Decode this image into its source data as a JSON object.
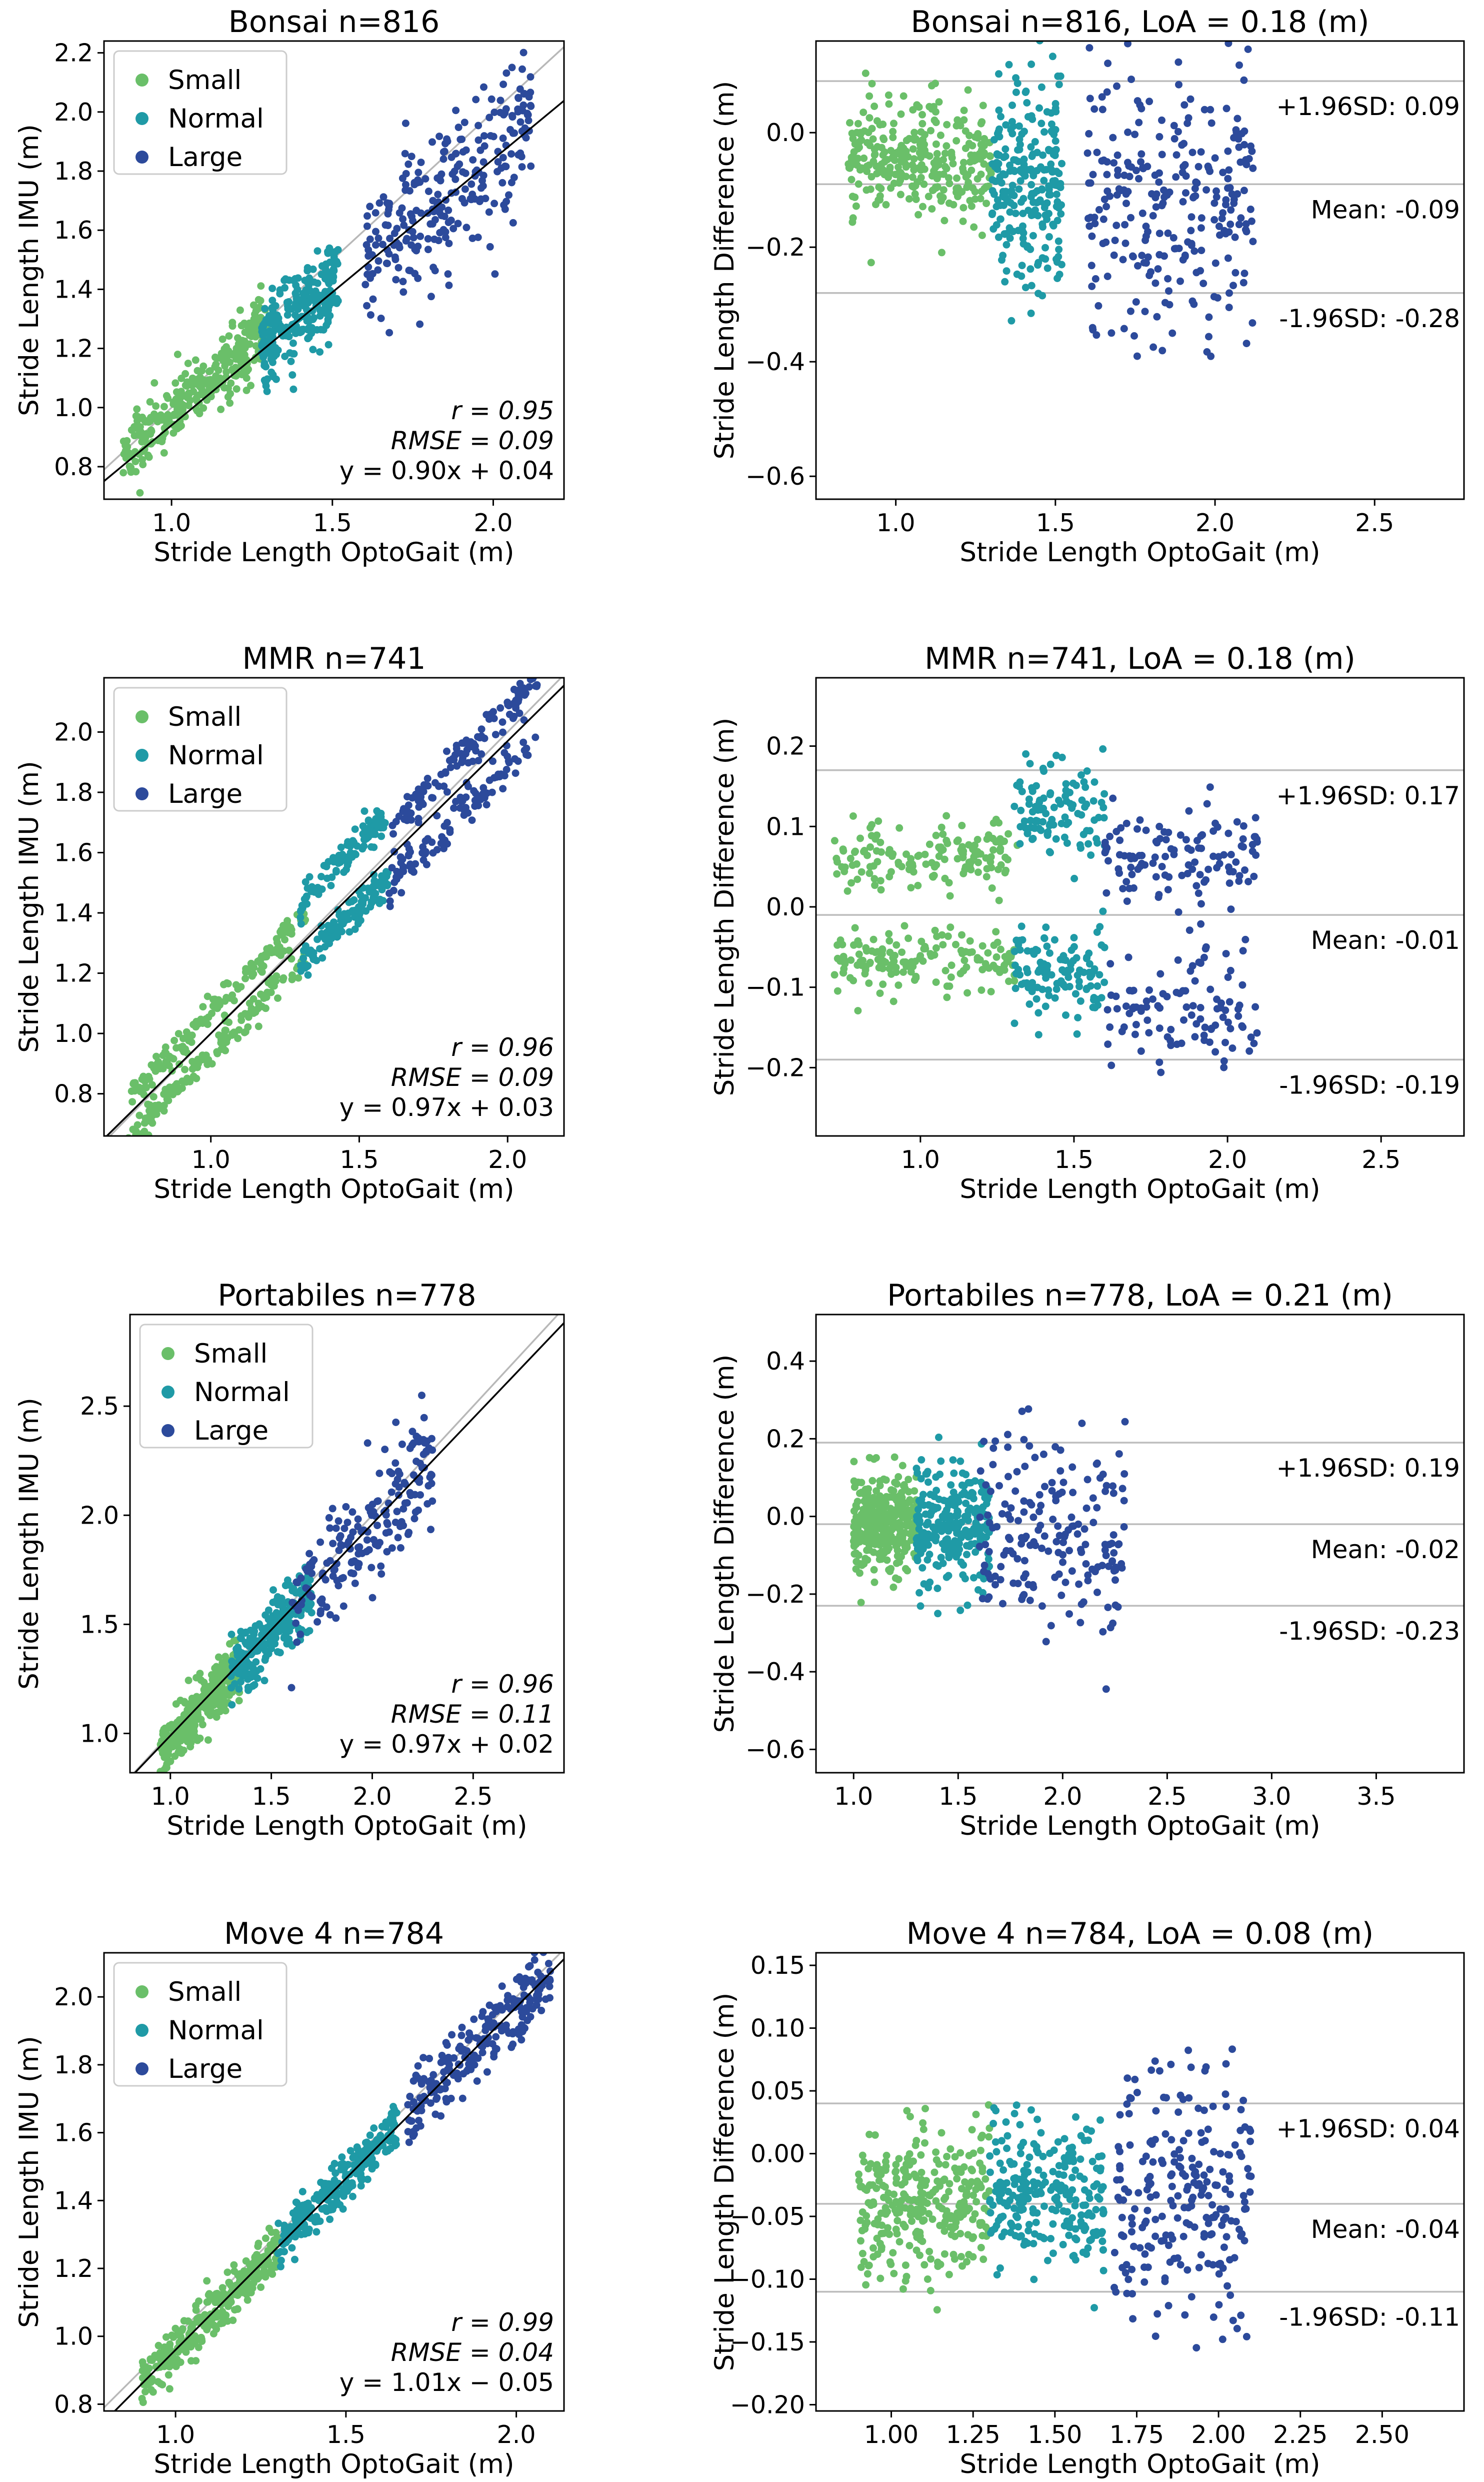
{
  "colors": {
    "small": "#6abf69",
    "normal": "#1f9aa6",
    "large": "#2c4a9b",
    "reference": "#b8b8b8",
    "fit": "#000000",
    "loa_line": "#bdbdbd"
  },
  "legend": [
    "Small",
    "Normal",
    "Large"
  ],
  "chart_data": [
    {
      "type": "scatter",
      "panel": "Bonsai-correlation",
      "title": "Bonsai  n=816",
      "xlabel": "Stride Length OptoGait (m)",
      "ylabel": "Stride Length IMU (m)",
      "xlim": [
        0.79,
        2.22
      ],
      "ylim": [
        0.69,
        2.24
      ],
      "xticks": [
        1.0,
        1.5,
        2.0
      ],
      "xticklabels": [
        "1.0",
        "1.5",
        "2.0"
      ],
      "yticks": [
        0.8,
        1.0,
        1.2,
        1.4,
        1.6,
        1.8,
        2.0,
        2.2
      ],
      "yticklabels": [
        "0.8",
        "1.0",
        "1.2",
        "1.4",
        "1.6",
        "1.8",
        "2.0",
        "2.2"
      ],
      "fit": {
        "slope": 0.9,
        "intercept": 0.04
      },
      "stats": [
        "r = 0.95",
        "RMSE = 0.09",
        "y = 0.90x + 0.04"
      ],
      "series": [
        {
          "name": "Small",
          "x_range": [
            0.85,
            1.3
          ],
          "n": 300,
          "bias": -0.02,
          "sd": 0.06
        },
        {
          "name": "Normal",
          "x_range": [
            1.28,
            1.52
          ],
          "n": 250,
          "bias": -0.08,
          "sd": 0.08
        },
        {
          "name": "Large",
          "x_range": [
            1.6,
            2.12
          ],
          "n": 266,
          "bias": -0.13,
          "sd": 0.13
        }
      ],
      "grid": false,
      "legend_position": "upper-left"
    },
    {
      "type": "scatter",
      "panel": "Bonsai-bland-altman",
      "title": "Bonsai  n=816,   LoA = 0.18 (m)",
      "xlabel": "Stride Length OptoGait (m)",
      "ylabel": "Stride Length Difference (m)",
      "xlim": [
        0.75,
        2.78
      ],
      "ylim": [
        -0.64,
        0.16
      ],
      "xticks": [
        1.0,
        1.5,
        2.0,
        2.5
      ],
      "xticklabels": [
        "1.0",
        "1.5",
        "2.0",
        "2.5"
      ],
      "yticks": [
        -0.6,
        -0.4,
        -0.2,
        0.0
      ],
      "yticklabels": [
        "−0.6",
        "−0.4",
        "−0.2",
        "0.0"
      ],
      "lines": [
        {
          "y": 0.09,
          "label": "+1.96SD: 0.09"
        },
        {
          "y": -0.09,
          "label": "Mean: -0.09"
        },
        {
          "y": -0.28,
          "label": "-1.96SD: -0.28"
        }
      ],
      "series": [
        {
          "name": "Small",
          "x_range": [
            0.85,
            1.3
          ],
          "n": 300,
          "bias": -0.05,
          "sd": 0.05
        },
        {
          "name": "Normal",
          "x_range": [
            1.3,
            1.52
          ],
          "n": 250,
          "bias": -0.09,
          "sd": 0.09
        },
        {
          "name": "Large",
          "x_range": [
            1.6,
            2.12
          ],
          "n": 266,
          "bias": -0.13,
          "sd": 0.13
        }
      ],
      "grid": false
    },
    {
      "type": "scatter",
      "panel": "MMR-correlation",
      "title": "MMR  n=741",
      "xlabel": "Stride Length OptoGait (m)",
      "ylabel": "Stride Length IMU (m)",
      "xlim": [
        0.64,
        2.19
      ],
      "ylim": [
        0.66,
        2.18
      ],
      "xticks": [
        1.0,
        1.5,
        2.0
      ],
      "xticklabels": [
        "1.0",
        "1.5",
        "2.0"
      ],
      "yticks": [
        0.8,
        1.0,
        1.2,
        1.4,
        1.6,
        1.8,
        2.0
      ],
      "yticklabels": [
        "0.8",
        "1.0",
        "1.2",
        "1.4",
        "1.6",
        "1.8",
        "2.0"
      ],
      "fit": {
        "slope": 0.97,
        "intercept": 0.03
      },
      "stats": [
        "r = 0.96",
        "RMSE = 0.09",
        "y = 0.97x + 0.03"
      ],
      "series": [
        {
          "name": "Small",
          "x_range": [
            0.72,
            1.32
          ],
          "n": 300,
          "bimodal": [
            0.07,
            -0.07
          ],
          "sd": 0.025
        },
        {
          "name": "Normal",
          "x_range": [
            1.3,
            1.6
          ],
          "n": 220,
          "bimodal": [
            0.13,
            -0.08
          ],
          "sd": 0.03
        },
        {
          "name": "Large",
          "x_range": [
            1.6,
            2.1
          ],
          "n": 221,
          "bimodal": [
            0.07,
            -0.12
          ],
          "sd": 0.035
        }
      ],
      "grid": false,
      "legend_position": "upper-left"
    },
    {
      "type": "scatter",
      "panel": "MMR-bland-altman",
      "title": "MMR  n=741,   LoA = 0.18 (m)",
      "xlabel": "Stride Length OptoGait (m)",
      "ylabel": "Stride Length Difference (m)",
      "xlim": [
        0.66,
        2.77
      ],
      "ylim": [
        -0.285,
        0.285
      ],
      "xticks": [
        1.0,
        1.5,
        2.0,
        2.5
      ],
      "xticklabels": [
        "1.0",
        "1.5",
        "2.0",
        "2.5"
      ],
      "yticks": [
        -0.2,
        -0.1,
        0.0,
        0.1,
        0.2
      ],
      "yticklabels": [
        "−0.2",
        "−0.1",
        "0.0",
        "0.1",
        "0.2"
      ],
      "lines": [
        {
          "y": 0.17,
          "label": "+1.96SD: 0.17"
        },
        {
          "y": -0.01,
          "label": "Mean: -0.01"
        },
        {
          "y": -0.19,
          "label": "-1.96SD: -0.19"
        }
      ],
      "series": [
        {
          "name": "Small",
          "x_range": [
            0.72,
            1.32
          ],
          "n": 300,
          "bimodal": [
            0.065,
            -0.065
          ],
          "sd": 0.02
        },
        {
          "name": "Normal",
          "x_range": [
            1.3,
            1.6
          ],
          "n": 220,
          "bimodal": [
            0.12,
            -0.08
          ],
          "sd": 0.03
        },
        {
          "name": "Large",
          "x_range": [
            1.6,
            2.1
          ],
          "n": 221,
          "bimodal": [
            0.06,
            -0.12
          ],
          "sd": 0.035
        }
      ],
      "grid": false
    },
    {
      "type": "scatter",
      "panel": "Portabiles-correlation",
      "title": "Portabiles  n=778",
      "xlabel": "Stride Length OptoGait (m)",
      "ylabel": "Stride Length IMU (m)",
      "xlim": [
        0.8,
        2.95
      ],
      "ylim": [
        0.82,
        2.92
      ],
      "xticks": [
        1.0,
        1.5,
        2.0,
        2.5
      ],
      "xticklabels": [
        "1.0",
        "1.5",
        "2.0",
        "2.5"
      ],
      "yticks": [
        1.0,
        1.5,
        2.0,
        2.5
      ],
      "yticklabels": [
        "1.0",
        "1.5",
        "2.0",
        "2.5"
      ],
      "fit": {
        "slope": 0.97,
        "intercept": 0.02
      },
      "stats": [
        "r = 0.96",
        "RMSE = 0.11",
        "y = 0.97x + 0.02"
      ],
      "series": [
        {
          "name": "Small",
          "x_range": [
            0.95,
            1.35
          ],
          "n": 340,
          "bias": -0.03,
          "sd": 0.06
        },
        {
          "name": "Normal",
          "x_range": [
            1.3,
            1.7
          ],
          "n": 250,
          "bias": -0.04,
          "sd": 0.08
        },
        {
          "name": "Large",
          "x_range": [
            1.6,
            2.3
          ],
          "n": 188,
          "bias": -0.05,
          "sd": 0.13
        }
      ],
      "grid": false,
      "legend_position": "upper-left"
    },
    {
      "type": "scatter",
      "panel": "Portabiles-bland-altman",
      "title": "Portabiles  n=778,   LoA = 0.21 (m)",
      "xlabel": "Stride Length OptoGait (m)",
      "ylabel": "Stride Length Difference (m)",
      "xlim": [
        0.82,
        3.92
      ],
      "ylim": [
        -0.66,
        0.52
      ],
      "xticks": [
        1.0,
        1.5,
        2.0,
        2.5,
        3.0,
        3.5
      ],
      "xticklabels": [
        "1.0",
        "1.5",
        "2.0",
        "2.5",
        "3.0",
        "3.5"
      ],
      "yticks": [
        -0.6,
        -0.4,
        -0.2,
        0.0,
        0.2,
        0.4
      ],
      "yticklabels": [
        "−0.6",
        "−0.4",
        "−0.2",
        "0.0",
        "0.2",
        "0.4"
      ],
      "lines": [
        {
          "y": 0.19,
          "label": "+1.96SD: 0.19"
        },
        {
          "y": -0.02,
          "label": "Mean: -0.02"
        },
        {
          "y": -0.23,
          "label": "-1.96SD: -0.23"
        }
      ],
      "series": [
        {
          "name": "Small",
          "x_range": [
            1.0,
            1.3
          ],
          "n": 340,
          "bias": -0.02,
          "sd": 0.06
        },
        {
          "name": "Normal",
          "x_range": [
            1.3,
            1.65
          ],
          "n": 250,
          "bias": -0.03,
          "sd": 0.08
        },
        {
          "name": "Large",
          "x_range": [
            1.6,
            2.3
          ],
          "n": 188,
          "bias": -0.04,
          "sd": 0.13
        }
      ],
      "grid": false
    },
    {
      "type": "scatter",
      "panel": "Move4-correlation",
      "title": "Move 4  n=784",
      "xlabel": "Stride Length OptoGait (m)",
      "ylabel": "Stride Length IMU (m)",
      "xlim": [
        0.79,
        2.14
      ],
      "ylim": [
        0.78,
        2.13
      ],
      "xticks": [
        1.0,
        1.5,
        2.0
      ],
      "xticklabels": [
        "1.0",
        "1.5",
        "2.0"
      ],
      "yticks": [
        0.8,
        1.0,
        1.2,
        1.4,
        1.6,
        1.8,
        2.0
      ],
      "yticklabels": [
        "0.8",
        "1.0",
        "1.2",
        "1.4",
        "1.6",
        "1.8",
        "2.0"
      ],
      "fit": {
        "slope": 1.01,
        "intercept": -0.05
      },
      "stats": [
        "r = 0.99",
        "RMSE = 0.04",
        "y = 1.01x − 0.05"
      ],
      "series": [
        {
          "name": "Small",
          "x_range": [
            0.9,
            1.3
          ],
          "n": 300,
          "bias": -0.04,
          "sd": 0.035
        },
        {
          "name": "Normal",
          "x_range": [
            1.3,
            1.65
          ],
          "n": 250,
          "bias": -0.035,
          "sd": 0.035
        },
        {
          "name": "Large",
          "x_range": [
            1.68,
            2.1
          ],
          "n": 234,
          "bias": -0.03,
          "sd": 0.05
        }
      ],
      "grid": false,
      "legend_position": "upper-left"
    },
    {
      "type": "scatter",
      "panel": "Move4-bland-altman",
      "title": "Move 4  n=784,   LoA = 0.08 (m)",
      "xlabel": "Stride Length OptoGait (m)",
      "ylabel": "Stride Length Difference (m)",
      "xlim": [
        0.77,
        2.75
      ],
      "ylim": [
        -0.205,
        0.16
      ],
      "xticks": [
        1.0,
        1.25,
        1.5,
        1.75,
        2.0,
        2.25,
        2.5
      ],
      "xticklabels": [
        "1.00",
        "1.25",
        "1.50",
        "1.75",
        "2.00",
        "2.25",
        "2.50"
      ],
      "yticks": [
        -0.2,
        -0.15,
        -0.1,
        -0.05,
        0.0,
        0.05,
        0.1,
        0.15
      ],
      "yticklabels": [
        "−0.20",
        "−0.15",
        "−0.10",
        "−0.05",
        "0.00",
        "0.05",
        "0.10",
        "0.15"
      ],
      "lines": [
        {
          "y": 0.04,
          "label": "+1.96SD: 0.04"
        },
        {
          "y": -0.04,
          "label": "Mean: -0.04"
        },
        {
          "y": -0.11,
          "label": "-1.96SD: -0.11"
        }
      ],
      "series": [
        {
          "name": "Small",
          "x_range": [
            0.9,
            1.3
          ],
          "n": 300,
          "bias": -0.04,
          "sd": 0.03
        },
        {
          "name": "Normal",
          "x_range": [
            1.3,
            1.65
          ],
          "n": 250,
          "bias": -0.035,
          "sd": 0.03
        },
        {
          "name": "Large",
          "x_range": [
            1.68,
            2.1
          ],
          "n": 234,
          "bias": -0.03,
          "sd": 0.05
        }
      ],
      "grid": false
    }
  ]
}
